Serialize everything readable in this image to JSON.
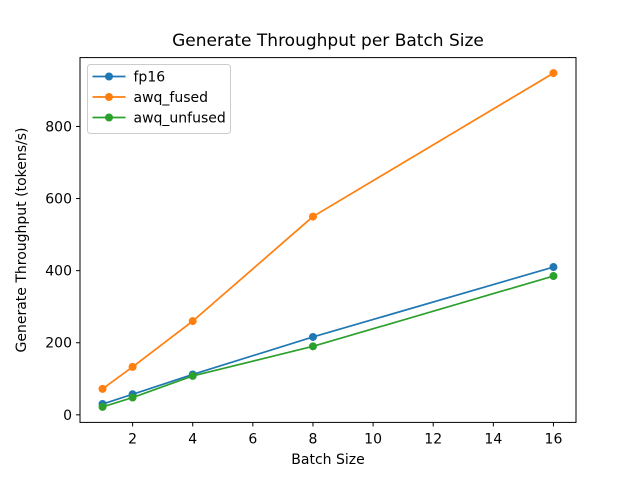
{
  "chart_data": {
    "type": "line",
    "title": "Generate Throughput per Batch Size",
    "xlabel": "Batch Size",
    "ylabel": "Generate Throughput (tokens/s)",
    "x": [
      1,
      2,
      4,
      8,
      16
    ],
    "series": [
      {
        "name": "fp16",
        "color": "#1f77b4",
        "values": [
          30,
          57,
          112,
          216,
          410
        ]
      },
      {
        "name": "awq_fused",
        "color": "#ff7f0e",
        "values": [
          72,
          133,
          260,
          550,
          948
        ]
      },
      {
        "name": "awq_unfused",
        "color": "#2ca02c",
        "values": [
          22,
          48,
          108,
          190,
          385
        ]
      }
    ],
    "xticks": [
      2,
      4,
      6,
      8,
      10,
      12,
      14,
      16
    ],
    "yticks": [
      0,
      200,
      400,
      600,
      800
    ],
    "xlim": [
      0.25,
      16.75
    ],
    "ylim": [
      -21,
      991
    ],
    "grid": false,
    "legend_position": "upper left",
    "marker": "circle",
    "background_color": "#ffffff",
    "spine_color": "#000000",
    "legend_border_color": "#cccccc"
  }
}
